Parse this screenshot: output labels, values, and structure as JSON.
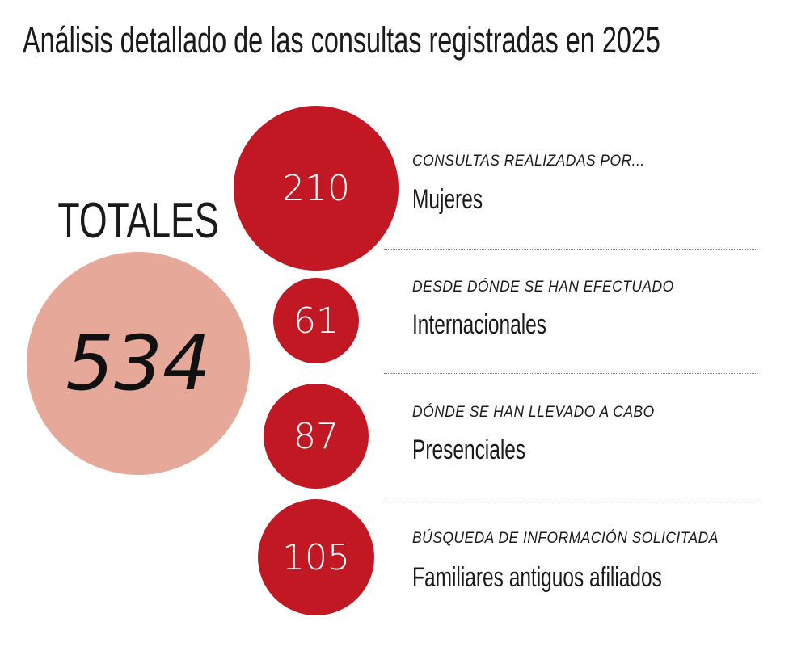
{
  "title": "Análisis detallado de las consultas registradas en 2025",
  "colors": {
    "red": "#c21824",
    "total": "#e6a899"
  },
  "chart_data": {
    "type": "bubble",
    "title": "Análisis detallado de las consultas registradas en 2025",
    "total": {
      "label": "TOTALES",
      "value": 534
    },
    "items": [
      {
        "caption": "CONSULTAS REALIZADAS POR...",
        "label": "Mujeres",
        "value": 210
      },
      {
        "caption": "DESDE DÓNDE SE HAN EFECTUADO",
        "label": "Internacionales",
        "value": 61
      },
      {
        "caption": "DÓNDE SE HAN LLEVADO A CABO",
        "label": "Presenciales",
        "value": 87
      },
      {
        "caption": "BÚSQUEDA DE INFORMACIÓN SOLICITADA",
        "label": "Familiares antiguos afiliados",
        "value": 105
      }
    ]
  }
}
